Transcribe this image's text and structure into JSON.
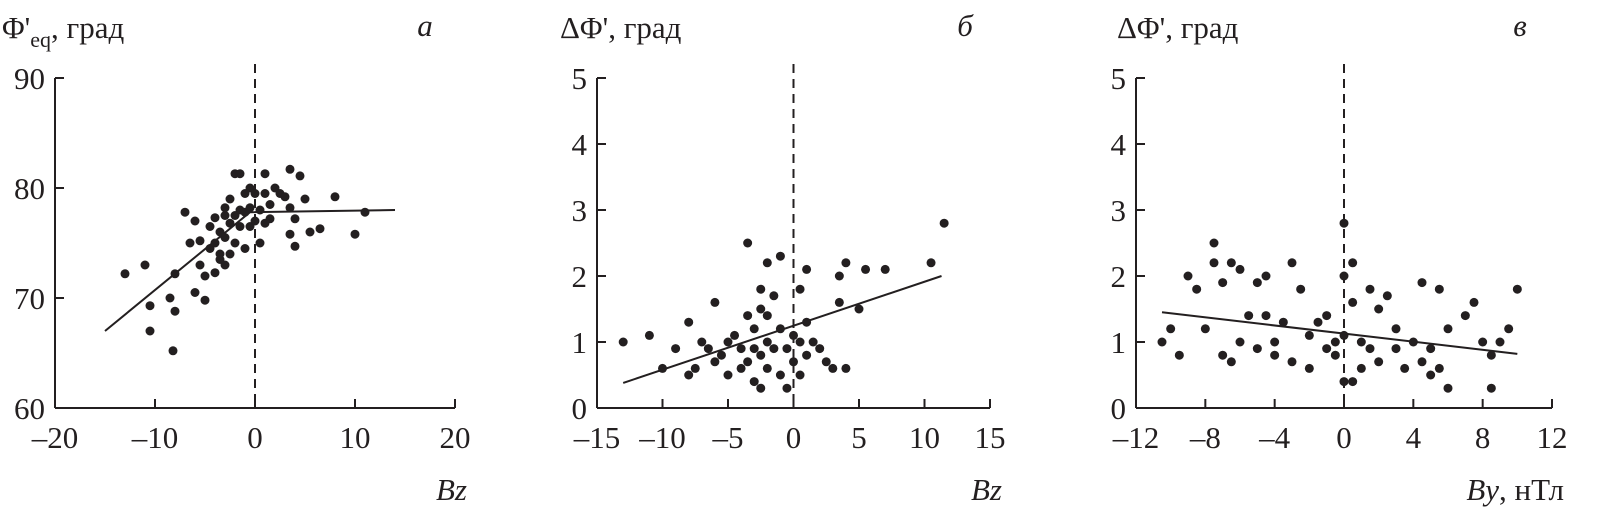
{
  "chart_data": [
    {
      "type": "scatter",
      "panel_label": "а",
      "ylabel": {
        "main": "Φ'",
        "sub": "eq",
        "rest": ", град"
      },
      "xlabel": {
        "main": "Bz"
      },
      "color": "#231f20",
      "x": [
        -13,
        -11,
        -10.5,
        -10.5,
        -8.5,
        -8,
        -8,
        -8.2,
        -7,
        -6.5,
        -6,
        -6,
        -5.5,
        -5.5,
        -5,
        -5,
        -4.5,
        -4.5,
        -4,
        -4,
        -4,
        -3.5,
        -3.5,
        -3.5,
        -3,
        -3,
        -3,
        -3,
        -2.5,
        -2.5,
        -2.5,
        -2,
        -2,
        -2,
        -1.5,
        -1.5,
        -1.5,
        -1,
        -1,
        -1,
        -0.5,
        -0.5,
        -0.5,
        0,
        0,
        0.5,
        0.5,
        1,
        1,
        1,
        1.5,
        1.5,
        2,
        2.5,
        3,
        3.5,
        3.5,
        3.5,
        4,
        4,
        4.5,
        5,
        5.5,
        6.5,
        8,
        10,
        11
      ],
      "values": [
        72.2,
        73,
        69.3,
        67,
        70,
        72.2,
        68.8,
        65.2,
        77.8,
        75,
        77,
        70.5,
        75.2,
        73,
        72,
        69.8,
        74.5,
        76.5,
        72.3,
        75,
        77.3,
        74,
        73.5,
        76,
        73,
        75.5,
        77.5,
        78.2,
        74,
        76.8,
        79,
        81.3,
        77.5,
        75,
        81.3,
        78,
        76.5,
        79.5,
        77.8,
        74.5,
        80,
        76.5,
        78.2,
        79.5,
        77,
        75,
        78,
        81.3,
        79.5,
        76.8,
        78.5,
        77.2,
        80,
        79.5,
        79.2,
        81.7,
        78.2,
        75.8,
        77.2,
        74.7,
        81.1,
        79,
        76,
        76.3,
        79.2,
        75.8,
        77.8
      ],
      "fit": {
        "x": [
          -15,
          -0.5,
          14
        ],
        "y": [
          67,
          77.8,
          78
        ]
      },
      "vline": 0,
      "xlim": [
        -20,
        20
      ],
      "ylim": [
        60,
        90
      ],
      "xticks": [
        {
          "value": -20,
          "label": "–20"
        },
        {
          "value": -10,
          "label": "–10"
        },
        0,
        10,
        20
      ],
      "yticks": [
        60,
        70,
        80,
        90
      ]
    },
    {
      "type": "scatter",
      "panel_label": "б",
      "ylabel": {
        "main": "ΔΦ'",
        "rest": ", град"
      },
      "xlabel": {
        "main": "Bz"
      },
      "color": "#231f20",
      "x": [
        -13,
        -11,
        -10,
        -9,
        -8,
        -8,
        -7.5,
        -7,
        -6.5,
        -6,
        -6,
        -5.5,
        -5,
        -5,
        -4.5,
        -4,
        -4,
        -3.5,
        -3.5,
        -3.5,
        -3,
        -3,
        -3,
        -2.5,
        -2.5,
        -2.5,
        -2.5,
        -2,
        -2,
        -2,
        -2,
        -1.5,
        -1.5,
        -1,
        -1,
        -1,
        -0.5,
        -0.5,
        0,
        0,
        0.5,
        0.5,
        0.5,
        1,
        1,
        1,
        1.5,
        2,
        2.5,
        3,
        3.5,
        3.5,
        4,
        4,
        5,
        5.5,
        7,
        10.5,
        11.5
      ],
      "values": [
        1,
        1.1,
        0.6,
        0.9,
        1.3,
        0.5,
        0.6,
        1,
        0.9,
        1.6,
        0.7,
        0.8,
        1,
        0.5,
        1.1,
        0.9,
        0.6,
        2.5,
        1.4,
        0.7,
        1.2,
        0.9,
        0.4,
        1.8,
        1.5,
        0.8,
        0.3,
        2.2,
        1.4,
        1,
        0.6,
        1.7,
        0.9,
        2.3,
        1.2,
        0.5,
        0.9,
        0.3,
        1.1,
        0.7,
        1.8,
        1,
        0.5,
        2.1,
        1.3,
        0.8,
        1,
        0.9,
        0.7,
        0.6,
        2,
        1.6,
        2.2,
        0.6,
        1.5,
        2.1,
        2.1,
        2.2,
        2.8
      ],
      "fit": {
        "x": [
          -13,
          11.3
        ],
        "y": [
          0.38,
          2
        ]
      },
      "vline": 0,
      "xlim": [
        -15,
        15
      ],
      "ylim": [
        0,
        5
      ],
      "xticks": [
        {
          "value": -15,
          "label": "–15"
        },
        {
          "value": -10,
          "label": "–10"
        },
        {
          "value": -5,
          "label": "–5"
        },
        0,
        5,
        10,
        15
      ],
      "yticks": [
        0,
        1,
        2,
        3,
        4,
        5
      ]
    },
    {
      "type": "scatter",
      "panel_label": "в",
      "ylabel": {
        "main": "ΔΦ'",
        "rest": ", град"
      },
      "xlabel": {
        "main": "By",
        "rest": ", нТл"
      },
      "color": "#231f20",
      "x": [
        -10.5,
        -10,
        -9.5,
        -9,
        -8.5,
        -8,
        -7.5,
        -7.5,
        -7,
        -7,
        -6.5,
        -6.5,
        -6,
        -6,
        -5.5,
        -5,
        -5,
        -4.5,
        -4.5,
        -4,
        -4,
        -3.5,
        -3,
        -3,
        -2.5,
        -2,
        -2,
        -1.5,
        -1,
        -1,
        -0.5,
        -0.5,
        0,
        0,
        0,
        0,
        0.5,
        0.5,
        0.5,
        1,
        1,
        1.5,
        1.5,
        2,
        2,
        2.5,
        3,
        3,
        3.5,
        4,
        4.5,
        4.5,
        5,
        5,
        5.5,
        5.5,
        6,
        6,
        7,
        7.5,
        8,
        8.5,
        8.5,
        9,
        9.5,
        10
      ],
      "values": [
        1,
        1.2,
        0.8,
        2,
        1.8,
        1.2,
        2.5,
        2.2,
        0.8,
        1.9,
        2.2,
        0.7,
        2.1,
        1,
        1.4,
        0.9,
        1.9,
        1.4,
        2,
        1,
        0.8,
        1.3,
        2.2,
        0.7,
        1.8,
        1.1,
        0.6,
        1.3,
        1.4,
        0.9,
        1,
        0.8,
        2.8,
        2,
        1.1,
        0.4,
        2.2,
        1.6,
        0.4,
        1,
        0.6,
        1.8,
        0.9,
        1.5,
        0.7,
        1.7,
        0.9,
        1.2,
        0.6,
        1,
        1.9,
        0.7,
        0.5,
        0.9,
        1.8,
        0.6,
        1.2,
        0.3,
        1.4,
        1.6,
        1,
        0.3,
        0.8,
        1,
        1.2,
        1.8
      ],
      "fit": {
        "x": [
          -10.5,
          10
        ],
        "y": [
          1.45,
          0.82
        ]
      },
      "vline": 0,
      "xlim": [
        -12,
        12
      ],
      "ylim": [
        0,
        5
      ],
      "xticks": [
        {
          "value": -12,
          "label": "–12"
        },
        {
          "value": -8,
          "label": "–8"
        },
        {
          "value": -4,
          "label": "–4"
        },
        0,
        4,
        8,
        12
      ],
      "yticks": [
        0,
        1,
        2,
        3,
        4,
        5
      ]
    }
  ]
}
